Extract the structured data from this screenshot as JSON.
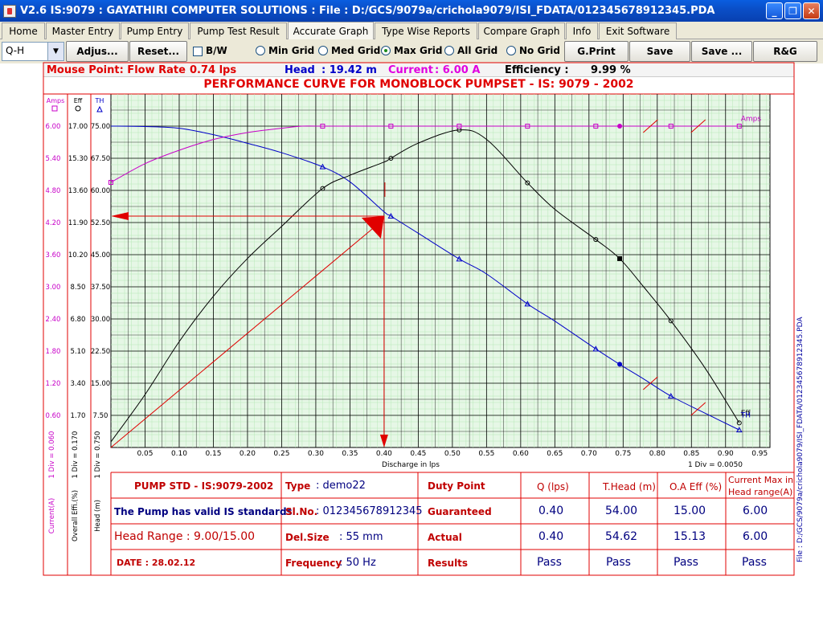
{
  "window": {
    "title": "V2.6  IS:9079 : GAYATHIRI COMPUTER SOLUTIONS  : File : D:/GCS/9079a/crichola9079/ISI_FDATA/012345678912345.PDA",
    "controls": [
      "_",
      "❐",
      "✕"
    ]
  },
  "menu_tabs": [
    {
      "label": "Home"
    },
    {
      "label": "Master Entry"
    },
    {
      "label": "Pump Entry"
    },
    {
      "label": "Pump Test Result"
    },
    {
      "label": "Accurate Graph"
    },
    {
      "label": "Type Wise Reports"
    },
    {
      "label": "Compare Graph"
    },
    {
      "label": "Info"
    },
    {
      "label": "Exit Software"
    }
  ],
  "active_tab": "Accurate Graph",
  "toolbar": {
    "graph_select": "Q-H",
    "adjust": "Adjus...",
    "reset": "Reset...",
    "bw_label": "B/W",
    "grid_options": [
      "Min Grid",
      "Med Grid",
      "Max Grid",
      "All Grid",
      "No Grid"
    ],
    "selected_grid": "Max Grid",
    "gprint": "G.Print",
    "save": "Save",
    "save_as": "Save ...",
    "rg": "R&G"
  },
  "readout": {
    "flow_label": "Mouse Point: Flow Rate",
    "flow_value": "0.74 lps",
    "head_label": "Head",
    "head_value": ": 19.42 m",
    "current_label": "Current",
    "current_value": ": 6.00 A",
    "efficiency_label": "Efficiency :",
    "efficiency_value": "9.99 %"
  },
  "graph_title": "PERFORMANCE CURVE FOR MONOBLOCK PUMPSET - IS: 9079 - 2002",
  "colors": {
    "head": "#0000c8",
    "efficiency": "#000000",
    "current": "#c800c8",
    "guide": "#e00000",
    "grid_bg": "#e6f7e6"
  },
  "chart_data": {
    "type": "line",
    "xlabel": "Discharge in lps",
    "x_ticks": [
      "0.05",
      "0.10",
      "0.15",
      "0.20",
      "0.25",
      "0.30",
      "0.35",
      "0.40",
      "0.45",
      "0.50",
      "0.55",
      "0.60",
      "0.65",
      "0.70",
      "0.75",
      "0.80",
      "0.85",
      "0.90",
      "0.95"
    ],
    "x_scale_note": "1 Div = 0.0050",
    "xlim": [
      0,
      0.965
    ],
    "axes": [
      {
        "name": "Amps",
        "title": "Current(A)",
        "div_note": "1 Div = 0.060",
        "ticks": [
          "0.60",
          "1.20",
          "1.80",
          "2.40",
          "3.00",
          "3.60",
          "4.20",
          "4.80",
          "5.40",
          "6.00"
        ],
        "ylim": [
          0,
          6.6
        ]
      },
      {
        "name": "Eff",
        "title": "Overall Effi.(%)",
        "div_note": "1 Div = 0.170",
        "ticks": [
          "1.70",
          "3.40",
          "5.10",
          "6.80",
          "8.50",
          "10.20",
          "11.90",
          "13.60",
          "15.30",
          "17.00"
        ],
        "ylim": [
          0,
          18.7
        ]
      },
      {
        "name": "TH",
        "title": "Head (m)",
        "div_note": "1 Div = 0.750",
        "ticks": [
          "7.50",
          "15.00",
          "22.50",
          "30.00",
          "37.50",
          "45.00",
          "52.50",
          "60.00",
          "67.50",
          "75.00"
        ],
        "ylim": [
          0,
          82.5
        ]
      }
    ],
    "series": [
      {
        "name": "TH",
        "axis": "TH",
        "points": [
          [
            0,
            75.0
          ],
          [
            0.05,
            74.9
          ],
          [
            0.1,
            74.5
          ],
          [
            0.15,
            73.0
          ],
          [
            0.2,
            71.0
          ],
          [
            0.25,
            68.8
          ],
          [
            0.31,
            65.5
          ],
          [
            0.35,
            62.0
          ],
          [
            0.4,
            55.0
          ],
          [
            0.41,
            54.0
          ],
          [
            0.45,
            50.0
          ],
          [
            0.51,
            44.0
          ],
          [
            0.55,
            40.5
          ],
          [
            0.61,
            33.5
          ],
          [
            0.65,
            29.5
          ],
          [
            0.71,
            23.0
          ],
          [
            0.745,
            19.4
          ],
          [
            0.78,
            16.0
          ],
          [
            0.82,
            12.0
          ],
          [
            0.87,
            8.0
          ],
          [
            0.92,
            4.1
          ]
        ],
        "markers": [
          [
            0.31,
            65.5
          ],
          [
            0.41,
            54.0
          ],
          [
            0.51,
            44.0
          ],
          [
            0.61,
            33.5
          ],
          [
            0.71,
            23.0
          ],
          [
            0.82,
            12.0
          ],
          [
            0.92,
            4.1
          ]
        ]
      },
      {
        "name": "Eff",
        "axis": "Eff",
        "points": [
          [
            0,
            0.3
          ],
          [
            0.05,
            2.8
          ],
          [
            0.1,
            5.6
          ],
          [
            0.15,
            8.0
          ],
          [
            0.2,
            10.0
          ],
          [
            0.25,
            11.7
          ],
          [
            0.31,
            13.7
          ],
          [
            0.35,
            14.4
          ],
          [
            0.4,
            15.1
          ],
          [
            0.41,
            15.3
          ],
          [
            0.45,
            16.1
          ],
          [
            0.51,
            16.8
          ],
          [
            0.55,
            16.3
          ],
          [
            0.61,
            14.0
          ],
          [
            0.65,
            12.6
          ],
          [
            0.71,
            11.0
          ],
          [
            0.745,
            9.99
          ],
          [
            0.78,
            8.5
          ],
          [
            0.82,
            6.7
          ],
          [
            0.87,
            4.2
          ],
          [
            0.92,
            1.3
          ]
        ],
        "markers": [
          [
            0.31,
            13.7
          ],
          [
            0.41,
            15.3
          ],
          [
            0.51,
            16.8
          ],
          [
            0.61,
            14.0
          ],
          [
            0.71,
            11.0
          ],
          [
            0.82,
            6.7
          ],
          [
            0.92,
            1.3
          ]
        ]
      },
      {
        "name": "Amps",
        "axis": "Amps",
        "points": [
          [
            0,
            4.95
          ],
          [
            0.05,
            5.3
          ],
          [
            0.1,
            5.55
          ],
          [
            0.15,
            5.75
          ],
          [
            0.2,
            5.88
          ],
          [
            0.25,
            5.96
          ],
          [
            0.28,
            6.0
          ],
          [
            0.31,
            6.0
          ],
          [
            0.41,
            6.0
          ],
          [
            0.51,
            6.0
          ],
          [
            0.61,
            6.0
          ],
          [
            0.71,
            6.0
          ],
          [
            0.745,
            6.0
          ],
          [
            0.82,
            6.0
          ],
          [
            0.92,
            6.0
          ]
        ],
        "markers": [
          [
            0,
            4.95
          ],
          [
            0.31,
            6.0
          ],
          [
            0.41,
            6.0
          ],
          [
            0.51,
            6.0
          ],
          [
            0.61,
            6.0
          ],
          [
            0.71,
            6.0
          ],
          [
            0.82,
            6.0
          ],
          [
            0.92,
            6.0
          ]
        ]
      }
    ],
    "series_labels": [
      {
        "text": "Amps",
        "series": "Amps",
        "x": 0.92,
        "y": 6.1
      },
      {
        "text": "Eff",
        "series": "Eff",
        "x": 0.92,
        "y": 1.7
      },
      {
        "text": "TH",
        "series": "TH",
        "x": 0.92,
        "y": 7.0
      }
    ],
    "guaranteed_point": {
      "q": 0.4,
      "head": 54.0
    },
    "cursor_point": {
      "q": 0.745,
      "head": 19.42,
      "eff": 9.99,
      "amps": 6.0
    },
    "head_range_marks": [
      [
        0.79,
        15.0
      ],
      [
        0.86,
        9.0
      ]
    ]
  },
  "side_label": "File : D:/GCS/9079a/crichola9079/ISI_FDATA/012345678912345.PDA",
  "results": {
    "std": "PUMP STD - IS:9079-2002",
    "valid": "The Pump has valid IS standards",
    "head_range": "Head Range : 9.00/15.00",
    "date": "DATE : 28.02.12",
    "type_label": "Type",
    "type_value": ": demo22",
    "slno_label": "Sl.No.",
    "slno_value": ": 012345678912345",
    "delsize_label": "Del.Size",
    "delsize_value": ": 55 mm",
    "freq_label": "Frequency",
    "freq_value": ": 50 Hz",
    "duty_point": "Duty Point",
    "guaranteed": "Guaranteed",
    "actual": "Actual",
    "results_label": "Results",
    "columns": [
      "Q (lps)",
      "T.Head (m)",
      "O.A Eff (%)",
      "Current Max in Head range(A)"
    ],
    "guaranteed_values": [
      "0.40",
      "54.00",
      "15.00",
      "6.00"
    ],
    "actual_values": [
      "0.40",
      "54.62",
      "15.13",
      "6.00"
    ],
    "result_values": [
      "Pass",
      "Pass",
      "Pass",
      "Pass"
    ]
  }
}
